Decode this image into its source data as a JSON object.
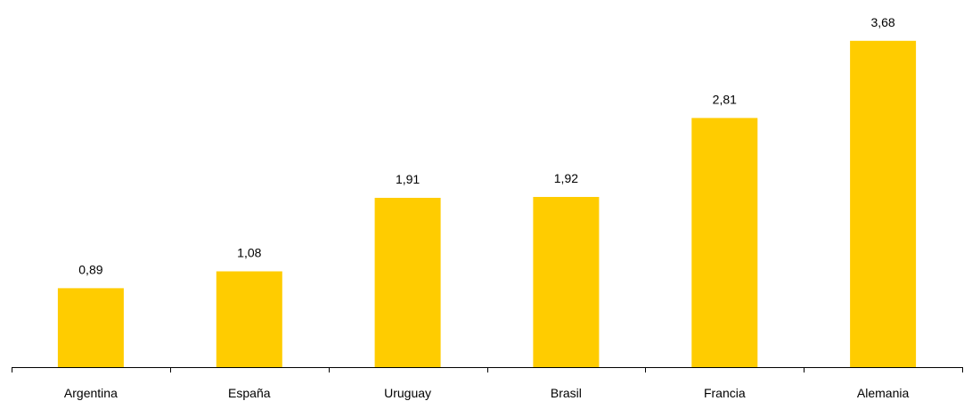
{
  "chart_data": {
    "type": "bar",
    "categories": [
      "Argentina",
      "España",
      "Uruguay",
      "Brasil",
      "Francia",
      "Alemania"
    ],
    "values": [
      0.89,
      1.08,
      1.91,
      1.92,
      2.81,
      3.68
    ],
    "value_labels": [
      "0,89",
      "1,08",
      "1,91",
      "1,92",
      "2,81",
      "3,68"
    ],
    "title": "",
    "xlabel": "",
    "ylabel": "",
    "ylim": [
      0,
      4
    ],
    "grid": false,
    "legend": "none",
    "bar_color": "#FFCC00"
  }
}
